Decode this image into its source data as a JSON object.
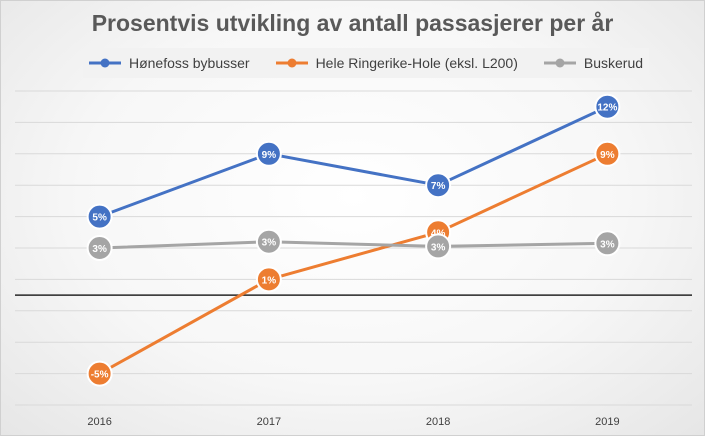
{
  "chart_data": {
    "type": "line",
    "title": "Prosentvis utvikling av antall passasjerer per år",
    "xlabel": "",
    "ylabel": "",
    "categories": [
      "2016",
      "2017",
      "2018",
      "2019"
    ],
    "ylim": [
      -7,
      13
    ],
    "y_tick_step": 2,
    "show_y_tick_labels": false,
    "grid": true,
    "legend_position": "top",
    "series": [
      {
        "name": "Hønefoss bybusser",
        "color": "#4472c4",
        "values": [
          5,
          9,
          7,
          12
        ],
        "data_labels": [
          "5%",
          "9%",
          "7%",
          "12%"
        ]
      },
      {
        "name": "Hele Ringerike-Hole (eksl. L200)",
        "color": "#ed7d31",
        "values": [
          -5,
          1,
          4,
          9
        ],
        "data_labels": [
          "-5%",
          "1%",
          "4%",
          "9%"
        ]
      },
      {
        "name": "Buskerud",
        "color": "#a5a5a5",
        "values": [
          3,
          3.4,
          3.1,
          3.3
        ],
        "data_labels": [
          "3%",
          "3%",
          "3%",
          "3%"
        ]
      }
    ]
  }
}
